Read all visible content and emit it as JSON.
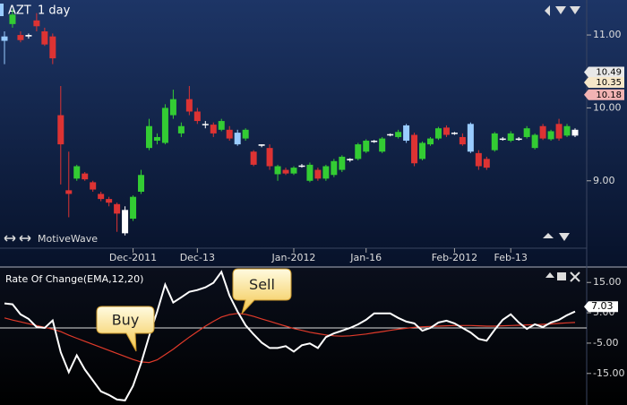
{
  "chart_data": [
    {
      "type": "candlestick",
      "title": "AZT",
      "subtitle": "1 day",
      "annotation": "MotiveWave",
      "categories": [
        null,
        null,
        null,
        null,
        null,
        null,
        null,
        null,
        null,
        null,
        null,
        null,
        null,
        null,
        null,
        null,
        "Dec-2011",
        null,
        null,
        null,
        null,
        null,
        null,
        null,
        "Dec-13",
        null,
        null,
        null,
        null,
        null,
        null,
        null,
        null,
        null,
        null,
        null,
        "Jan-2012",
        null,
        null,
        null,
        null,
        null,
        null,
        null,
        null,
        "Jan-16",
        null,
        null,
        null,
        null,
        null,
        null,
        null,
        null,
        null,
        null,
        "Feb-2012",
        null,
        null,
        null,
        null,
        null,
        null,
        "Feb-13",
        null,
        null,
        null,
        null,
        null,
        null,
        null,
        null
      ],
      "open": [
        10.92,
        11.15,
        11.0,
        10.98,
        11.2,
        11.05,
        10.98,
        9.9,
        8.87,
        9.03,
        9.1,
        8.98,
        8.82,
        8.75,
        8.68,
        8.28,
        8.48,
        8.85,
        9.45,
        9.55,
        9.52,
        9.9,
        9.65,
        10.12,
        9.95,
        9.77,
        9.77,
        9.7,
        9.7,
        9.5,
        9.58,
        9.4,
        9.48,
        9.45,
        9.09,
        9.15,
        9.1,
        9.2,
        9.0,
        9.15,
        9.03,
        9.08,
        9.15,
        9.28,
        9.3,
        9.4,
        9.54,
        9.4,
        9.63,
        9.6,
        9.55,
        9.63,
        9.3,
        9.5,
        9.58,
        9.73,
        9.65,
        9.6,
        9.4,
        9.38,
        9.3,
        9.42,
        9.57,
        9.55,
        9.57,
        9.6,
        9.45,
        9.75,
        9.57,
        9.78,
        9.62,
        9.62
      ],
      "high": [
        11.05,
        11.35,
        11.05,
        11.02,
        11.3,
        11.1,
        11.02,
        10.3,
        9.4,
        9.22,
        9.12,
        9.0,
        8.85,
        8.78,
        8.7,
        8.65,
        8.8,
        9.15,
        9.85,
        9.65,
        10.05,
        10.25,
        9.8,
        10.3,
        10.0,
        9.82,
        9.8,
        9.85,
        9.75,
        9.7,
        9.72,
        9.42,
        9.5,
        9.5,
        9.22,
        9.18,
        9.2,
        9.23,
        9.25,
        9.18,
        9.22,
        9.3,
        9.35,
        9.31,
        9.52,
        9.57,
        9.56,
        9.6,
        9.65,
        9.7,
        9.78,
        9.66,
        9.54,
        9.6,
        9.74,
        9.76,
        9.67,
        9.65,
        9.8,
        9.42,
        9.33,
        9.67,
        9.6,
        9.68,
        9.6,
        9.75,
        9.65,
        9.78,
        9.7,
        9.85,
        9.78,
        9.72
      ],
      "low": [
        10.6,
        11.1,
        10.9,
        10.95,
        11.05,
        10.85,
        10.6,
        8.95,
        8.5,
        9.0,
        9.0,
        8.85,
        8.72,
        8.65,
        8.3,
        8.25,
        8.45,
        8.82,
        9.42,
        9.5,
        9.5,
        9.85,
        9.6,
        9.9,
        9.78,
        9.72,
        9.6,
        9.68,
        9.55,
        9.48,
        9.55,
        9.2,
        9.46,
        9.15,
        9.0,
        9.08,
        9.08,
        9.18,
        8.98,
        9.0,
        9.0,
        9.05,
        9.12,
        9.26,
        9.28,
        9.38,
        9.52,
        9.38,
        9.61,
        9.58,
        9.52,
        9.2,
        9.28,
        9.48,
        9.56,
        9.6,
        9.63,
        9.48,
        9.38,
        9.15,
        9.15,
        9.4,
        9.55,
        9.53,
        9.55,
        9.58,
        9.43,
        9.56,
        9.55,
        9.55,
        9.6,
        9.6
      ],
      "close": [
        10.98,
        11.28,
        10.93,
        11.0,
        11.12,
        10.87,
        10.68,
        9.5,
        8.82,
        9.2,
        9.02,
        8.88,
        8.75,
        8.7,
        8.55,
        8.6,
        8.78,
        9.08,
        9.75,
        9.6,
        10.0,
        10.12,
        9.75,
        9.95,
        9.82,
        9.78,
        9.65,
        9.82,
        9.58,
        9.66,
        9.7,
        9.22,
        9.5,
        9.2,
        9.2,
        9.1,
        9.18,
        9.21,
        9.22,
        9.03,
        9.2,
        9.27,
        9.33,
        9.3,
        9.5,
        9.55,
        9.55,
        9.58,
        9.64,
        9.67,
        9.76,
        9.24,
        9.52,
        9.58,
        9.72,
        9.63,
        9.66,
        9.5,
        9.78,
        9.2,
        9.18,
        9.65,
        9.58,
        9.65,
        9.58,
        9.72,
        9.63,
        9.58,
        9.68,
        9.58,
        9.75,
        9.7
      ],
      "candle_colors": [
        "#99ccff",
        "#33cc33",
        "#dd3333",
        "#ffffff",
        "#dd3333",
        "#dd3333",
        "#dd3333",
        "#dd3333",
        "#dd3333",
        "#33cc33",
        "#dd3333",
        "#dd3333",
        "#dd3333",
        "#dd3333",
        "#dd3333",
        "#ffffff",
        "#33cc33",
        "#33cc33",
        "#33cc33",
        "#33cc33",
        "#33cc33",
        "#33cc33",
        "#33cc33",
        "#dd3333",
        "#dd3333",
        "#ffffff",
        "#dd3333",
        "#33cc33",
        "#dd3333",
        "#99ccff",
        "#33cc33",
        "#dd3333",
        "#ffffff",
        "#dd3333",
        "#33cc33",
        "#dd3333",
        "#33cc33",
        "#ffffff",
        "#33cc33",
        "#dd3333",
        "#33cc33",
        "#33cc33",
        "#33cc33",
        "#ffffff",
        "#33cc33",
        "#33cc33",
        "#ffffff",
        "#33cc33",
        "#ffffff",
        "#33cc33",
        "#99ccff",
        "#dd3333",
        "#33cc33",
        "#33cc33",
        "#33cc33",
        "#dd3333",
        "#ffffff",
        "#dd3333",
        "#99ccff",
        "#dd3333",
        "#dd3333",
        "#33cc33",
        "#ffffff",
        "#33cc33",
        "#ffffff",
        "#33cc33",
        "#33cc33",
        "#dd3333",
        "#33cc33",
        "#dd3333",
        "#33cc33",
        "#ffffff"
      ],
      "ylim": [
        8.1,
        11.48
      ],
      "yticks": [
        {
          "value": 9,
          "label": "9.00"
        },
        {
          "value": 10,
          "label": "10.00"
        },
        {
          "value": 11,
          "label": "11.00"
        }
      ],
      "price_markers": [
        10.49,
        10.35,
        10.18
      ],
      "price_marker_colors": [
        "#e8e8e8",
        "#f6e7c9",
        "#f2b3b3"
      ]
    },
    {
      "type": "line",
      "title": "Rate Of Change(EMA,12,20)",
      "series": [
        {
          "color": "#ffffff",
          "values": [
            8.1,
            7.8,
            4.5,
            3.0,
            0.3,
            0,
            2.5,
            -8,
            -14.6,
            -9,
            -13.7,
            -17.3,
            -20.9,
            -22.1,
            -23.6,
            -23.9,
            -19.1,
            -11.6,
            -2.7,
            5.4,
            14.3,
            8.4,
            10.1,
            11.9,
            12.5,
            13.4,
            14.9,
            18.5,
            10.7,
            5.4,
            0.9,
            -2.1,
            -4.8,
            -6.6,
            -6.6,
            -6,
            -7.8,
            -5.7,
            -5.1,
            -6.6,
            -3,
            -1.8,
            -0.9,
            0,
            1.2,
            2.7,
            4.8,
            4.8,
            4.8,
            3.3,
            2.1,
            1.5,
            -0.9,
            0,
            1.8,
            2.4,
            1.5,
            0,
            -1.5,
            -3.6,
            -4.2,
            -0.6,
            2.7,
            4.5,
            1.8,
            -0.3,
            1.2,
            0.3,
            1.8,
            2.7,
            4.2,
            5.4
          ]
        },
        {
          "color": "#e03a2a",
          "values": [
            3.3,
            2.6,
            2.0,
            1.4,
            0.8,
            0.2,
            -0.4,
            -1.2,
            -2.4,
            -3.4,
            -4.4,
            -5.4,
            -6.4,
            -7.4,
            -8.4,
            -9.4,
            -10.4,
            -11.2,
            -11.4,
            -10.5,
            -8.8,
            -7.0,
            -5.0,
            -3.0,
            -1.2,
            0.6,
            2.2,
            3.6,
            4.4,
            4.8,
            4.5,
            3.8,
            3.0,
            2.2,
            1.4,
            0.6,
            -0.2,
            -0.8,
            -1.4,
            -1.9,
            -2.3,
            -2.6,
            -2.7,
            -2.6,
            -2.3,
            -2.0,
            -1.6,
            -1.2,
            -0.8,
            -0.4,
            -0.1,
            0.2,
            0.4,
            0.5,
            0.6,
            0.7,
            0.8,
            0.8,
            0.8,
            0.7,
            0.6,
            0.6,
            0.7,
            0.8,
            0.9,
            1.0,
            1.1,
            1.2,
            1.3,
            1.5,
            1.7,
            1.8
          ]
        }
      ],
      "ylim": [
        -25.4,
        19.5
      ],
      "yticks": [
        {
          "value": -15,
          "label": "-15.00"
        },
        {
          "value": -5,
          "label": "-5.00"
        },
        {
          "value": 5,
          "label": "5.00"
        },
        {
          "value": 15,
          "label": "15.00"
        }
      ],
      "current_value": 7.03,
      "annotations": [
        {
          "text": "Buy"
        },
        {
          "text": "Sell"
        }
      ]
    }
  ]
}
